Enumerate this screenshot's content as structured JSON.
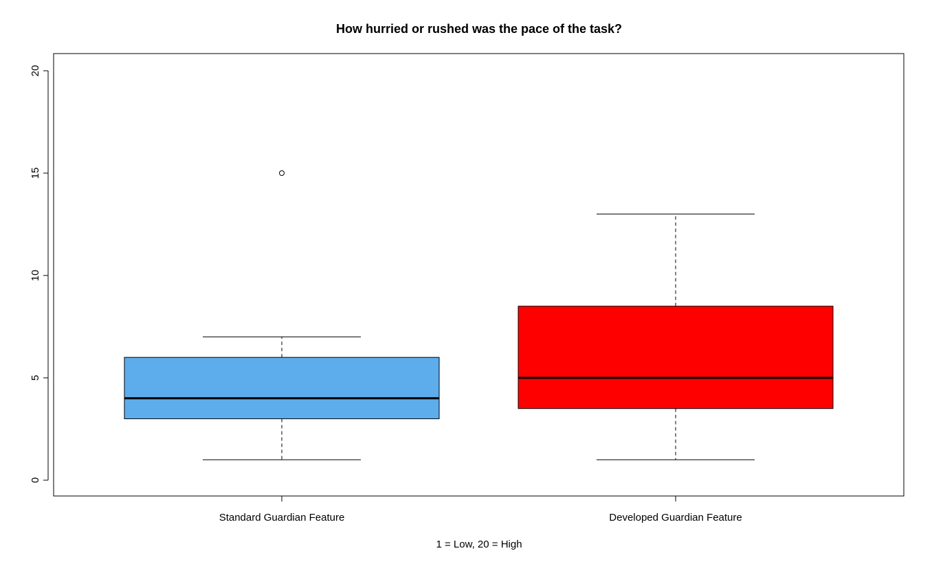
{
  "chart_data": {
    "type": "boxplot",
    "title": "How hurried or rushed was the pace of the task?",
    "xlabel": "1 = Low, 20 = High",
    "ylabel": "",
    "ylim": [
      0,
      20
    ],
    "yticks": [
      "0",
      "5",
      "10",
      "15",
      "20"
    ],
    "grid": false,
    "categories": [
      "Standard Guardian Feature",
      "Developed Guardian Feature"
    ],
    "boxes": [
      {
        "min": 1,
        "q1": 3,
        "median": 4,
        "q3": 6,
        "max": 7,
        "outliers": [
          15
        ],
        "color": "#5DADEC"
      },
      {
        "min": 1,
        "q1": 3.5,
        "median": 5,
        "q3": 8.5,
        "max": 13,
        "outliers": [],
        "color": "#FF0000"
      }
    ]
  }
}
